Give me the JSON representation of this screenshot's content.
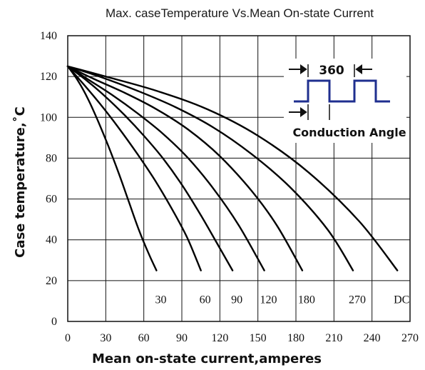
{
  "chart_data": {
    "type": "line",
    "title": "Max. caseTemperature Vs.Mean On-state Current",
    "xlabel": "Mean on-state current,amperes",
    "ylabel": "Case temperature,˚C",
    "xlim": [
      0,
      270
    ],
    "ylim": [
      0,
      140
    ],
    "xticks": [
      "0",
      "30",
      "60",
      "90",
      "120",
      "150",
      "180",
      "210",
      "240",
      "270"
    ],
    "yticks": [
      "0",
      "20",
      "40",
      "60",
      "80",
      "100",
      "120",
      "140"
    ],
    "grid": true,
    "series": [
      {
        "name": "30",
        "x": [
          0,
          8,
          16,
          24,
          32,
          40,
          48,
          56,
          64,
          70
        ],
        "y": [
          125,
          118,
          109,
          98,
          86,
          73,
          59,
          45,
          33,
          25
        ]
      },
      {
        "name": "60",
        "x": [
          0,
          10,
          25,
          40,
          55,
          70,
          85,
          95,
          105
        ],
        "y": [
          125,
          118,
          107,
          95,
          82,
          68,
          52,
          40,
          25
        ]
      },
      {
        "name": "90",
        "x": [
          0,
          15,
          30,
          45,
          60,
          75,
          90,
          105,
          118,
          130
        ],
        "y": [
          125,
          118,
          110,
          101,
          91,
          80,
          67,
          52,
          38,
          25
        ]
      },
      {
        "name": "120",
        "x": [
          0,
          15,
          35,
          55,
          75,
          95,
          115,
          135,
          155
        ],
        "y": [
          125,
          119,
          111,
          102,
          92,
          80,
          65,
          47,
          25
        ]
      },
      {
        "name": "180",
        "x": [
          0,
          20,
          45,
          70,
          95,
          120,
          145,
          165,
          185
        ],
        "y": [
          125,
          119,
          112,
          104,
          94,
          81,
          64,
          47,
          25
        ]
      },
      {
        "name": "270",
        "x": [
          0,
          25,
          55,
          85,
          115,
          145,
          175,
          205,
          225
        ],
        "y": [
          125,
          120,
          113,
          105,
          95,
          82,
          66,
          45,
          25
        ]
      },
      {
        "name": "DC",
        "x": [
          0,
          30,
          70,
          110,
          150,
          190,
          230,
          260
        ],
        "y": [
          125,
          120,
          113,
          104,
          91,
          73,
          49,
          25
        ]
      }
    ],
    "curve_labels": [
      "30",
      "60",
      "90",
      "120",
      "180",
      "270",
      "DC"
    ],
    "inset": {
      "angle_label": "360",
      "caption": "Conduction Angle",
      "waveform_color": "#1f2f8f"
    }
  }
}
